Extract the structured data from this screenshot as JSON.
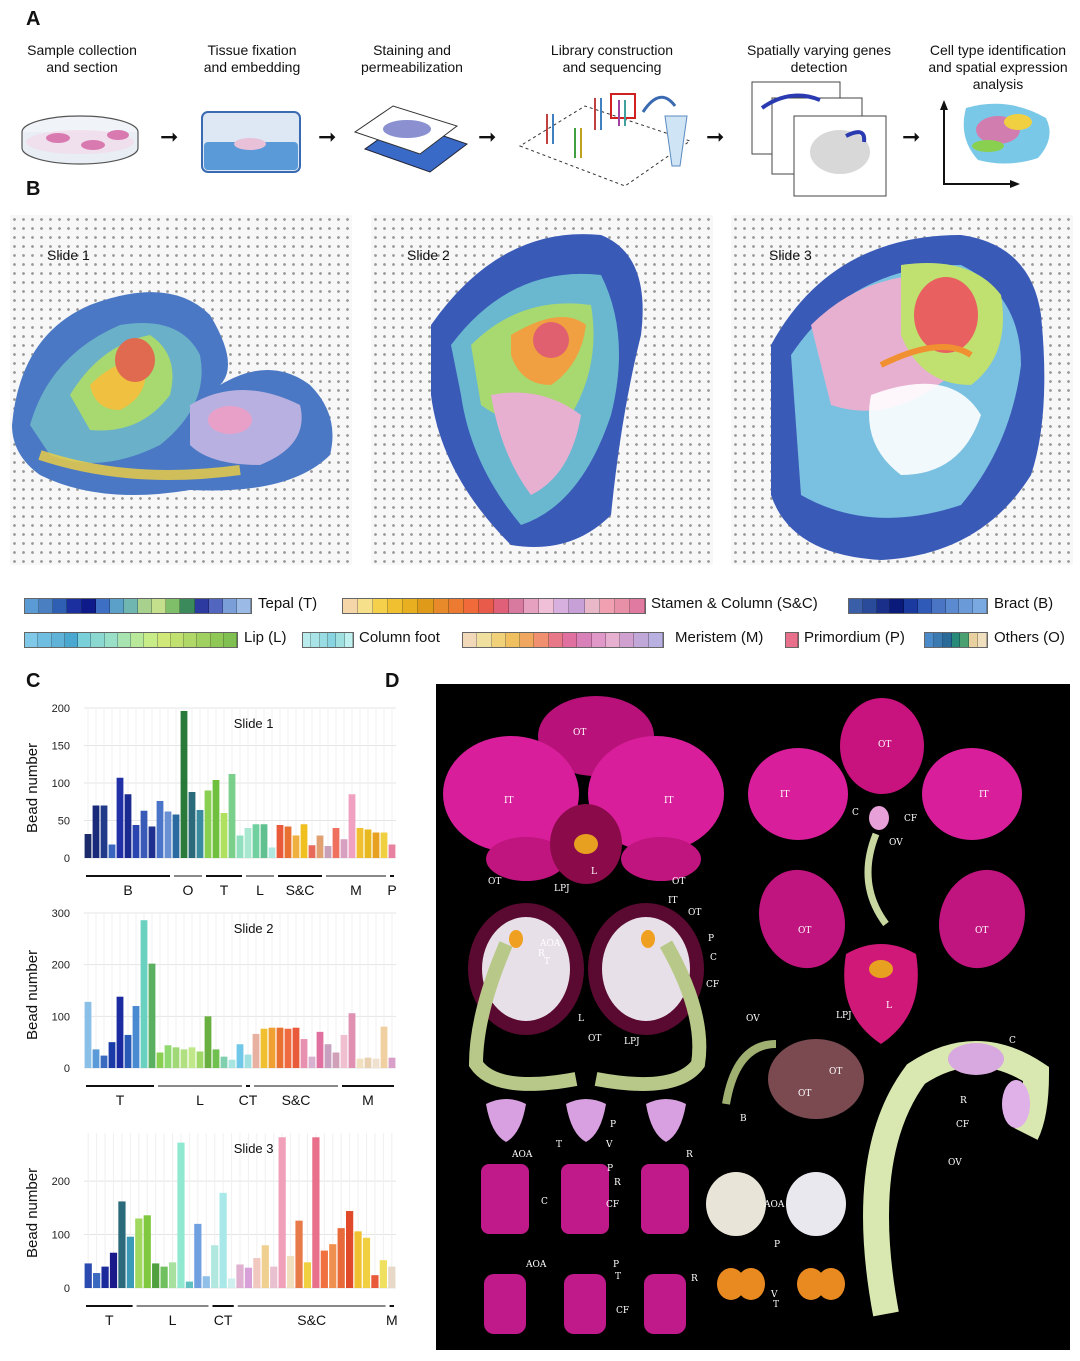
{
  "panels": {
    "a": "A",
    "b": "B",
    "c": "C",
    "d": "D"
  },
  "workflow": {
    "steps": [
      {
        "line1": "Sample collection",
        "line2": "and section",
        "line3": ""
      },
      {
        "line1": "Tissue fixation",
        "line2": "and embedding",
        "line3": ""
      },
      {
        "line1": "Staining and",
        "line2": "permeabilization",
        "line3": ""
      },
      {
        "line1": "Library construction",
        "line2": "and sequencing",
        "line3": ""
      },
      {
        "line1": "Spatially varying genes",
        "line2": "detection",
        "line3": ""
      },
      {
        "line1": "Cell type identification",
        "line2": "and spatial expression",
        "line3": "analysis"
      }
    ]
  },
  "slides": {
    "s1": "Slide 1",
    "s2": "Slide 2",
    "s3": "Slide 3"
  },
  "legend": {
    "tepal": "Tepal (T)",
    "stamen": "Stamen & Column (S&C)",
    "bract": "Bract (B)",
    "lip": "Lip (L)",
    "column_foot": "Column foot",
    "meristem": "Meristem (M)",
    "primordium": "Primordium (P)",
    "others": "Others (O)",
    "colors": {
      "tepal": [
        "#5b9bd5",
        "#4a7fc1",
        "#2f5fb3",
        "#1b2f9e",
        "#0f1a8a",
        "#3d6fc4",
        "#5aa0c8",
        "#6fb6b0",
        "#a9d18e",
        "#c5e08c",
        "#7fbf6a",
        "#3a8a5c",
        "#2d3aa0",
        "#5266c0",
        "#7a9fd8",
        "#9bbbe6"
      ],
      "stamen": [
        "#f4d6a8",
        "#f7e08a",
        "#f5d04a",
        "#f0c030",
        "#e8b020",
        "#e09a1a",
        "#e88a2a",
        "#ec7a30",
        "#f06a3a",
        "#e85a4a",
        "#e0607a",
        "#d87aa0",
        "#e6a0c0",
        "#f0c0d8",
        "#d8b0e0",
        "#c8a0d8",
        "#e8b8c8",
        "#f0a0b0",
        "#e890a8",
        "#e07aa0"
      ],
      "bract": [
        "#3a5fa8",
        "#2a4a9a",
        "#1a2f8a",
        "#0a1a7a",
        "#1a3aa0",
        "#2f5ab8",
        "#4a74c4",
        "#5b8ad0",
        "#6a9ad8",
        "#7aa8e0"
      ],
      "lip": [
        "#7fc8e8",
        "#6fbde0",
        "#5fb2d8",
        "#4aa8d0",
        "#7ad0d8",
        "#8ad8d0",
        "#9ae0c8",
        "#a8e4b0",
        "#b8e89a",
        "#c8ec88",
        "#d0e878",
        "#c0e070",
        "#b0d868",
        "#a0d060",
        "#90c858",
        "#80c050"
      ],
      "column_foot": [
        "#b8ecec",
        "#a8e4e8",
        "#98dce4",
        "#88d4e0",
        "#a0e0e0",
        "#c0f0f0"
      ],
      "meristem": [
        "#f0d8b8",
        "#f0e0a0",
        "#f0d078",
        "#f0c060",
        "#f0a860",
        "#f09070",
        "#e87888",
        "#e070a0",
        "#d880b8",
        "#e098c8",
        "#e8b0d0",
        "#d0a0d0",
        "#c0a8d8",
        "#b8b0e0"
      ],
      "primordium": [
        "#e8708a"
      ],
      "others": [
        "#4a8ac8",
        "#3a7ab0",
        "#2a6a98",
        "#2a8a7a",
        "#4aa070",
        "#e8d0a0",
        "#f0e0c0"
      ]
    }
  },
  "chart_data": [
    {
      "type": "bar",
      "title": "Slide 1",
      "ylabel": "Bead number",
      "ylim": [
        0,
        200
      ],
      "yticks": [
        0,
        50,
        100,
        150,
        200
      ],
      "values": [
        32,
        70,
        70,
        18,
        107,
        85,
        44,
        63,
        42,
        76,
        62,
        58,
        196,
        88,
        64,
        90,
        104,
        60,
        112,
        30,
        40,
        45,
        45,
        14,
        44,
        42,
        30,
        45,
        17,
        30,
        16,
        40,
        25,
        85,
        40,
        38,
        34,
        34,
        18
      ],
      "colors": [
        "#1a2a6a",
        "#1a2a7a",
        "#223a8a",
        "#3a66c0",
        "#2230a8",
        "#1a2a90",
        "#2a44b0",
        "#3a5ab8",
        "#203090",
        "#4a74c8",
        "#6a90d4",
        "#2a6aa0",
        "#2a7a3a",
        "#2a6a7a",
        "#3a8aa0",
        "#8ad050",
        "#70c040",
        "#b0e060",
        "#7ad08a",
        "#90e0c0",
        "#a8e8d0",
        "#70d0a0",
        "#60c090",
        "#b0e8e0",
        "#e85a3a",
        "#e87030",
        "#f0b040",
        "#f0c020",
        "#e86a5a",
        "#e0a070",
        "#c8a0b8",
        "#f07060",
        "#d8a0c0",
        "#f0a0c0",
        "#f0c030",
        "#e8b820",
        "#e8a020",
        "#f0d040",
        "#e880a0"
      ],
      "groups": [
        {
          "label": "B",
          "start": 0,
          "end": 10
        },
        {
          "label": "O",
          "start": 11,
          "end": 14
        },
        {
          "label": "T",
          "start": 15,
          "end": 19
        },
        {
          "label": "L",
          "start": 20,
          "end": 23
        },
        {
          "label": "S&C",
          "start": 24,
          "end": 29
        },
        {
          "label": "M",
          "start": 30,
          "end": 37
        },
        {
          "label": "P",
          "start": 38,
          "end": 38
        }
      ]
    },
    {
      "type": "bar",
      "title": "Slide 2",
      "ylabel": "Bead number",
      "ylim": [
        0,
        300
      ],
      "yticks": [
        0,
        100,
        200,
        300
      ],
      "values": [
        128,
        36,
        24,
        50,
        138,
        64,
        120,
        286,
        202,
        30,
        44,
        40,
        36,
        40,
        32,
        100,
        36,
        22,
        16,
        46,
        26,
        66,
        76,
        78,
        78,
        76,
        78,
        56,
        22,
        70,
        46,
        30,
        64,
        106,
        18,
        20,
        18,
        80,
        20
      ],
      "colors": [
        "#8ac0e8",
        "#5a9ad8",
        "#3a6ac0",
        "#1a3aa8",
        "#1a2aa0",
        "#2a5ab8",
        "#4a8ad0",
        "#6ad0c0",
        "#5ab060",
        "#8ad050",
        "#90d870",
        "#a0d878",
        "#b0e080",
        "#c0e888",
        "#a0d868",
        "#6ab040",
        "#70c050",
        "#80d0b0",
        "#a8e4e0",
        "#70c8e8",
        "#a0e0e0",
        "#e8b0a0",
        "#f0c030",
        "#f0a030",
        "#e87030",
        "#f06a40",
        "#e85a3a",
        "#e890b0",
        "#d8b0d0",
        "#e070a0",
        "#c8a0c0",
        "#d0a0b8",
        "#f0c0d0",
        "#e090b0",
        "#f0e0c0",
        "#e8d0b0",
        "#f0e0d0",
        "#f0d0a0",
        "#d8a0c8"
      ],
      "groups": [
        {
          "label": "T",
          "start": 0,
          "end": 8
        },
        {
          "label": "L",
          "start": 9,
          "end": 19
        },
        {
          "label": "CT",
          "start": 20,
          "end": 20
        },
        {
          "label": "S&C",
          "start": 21,
          "end": 31
        },
        {
          "label": "M",
          "start": 32,
          "end": 38
        }
      ]
    },
    {
      "type": "bar",
      "title": "Slide 3",
      "ylabel": "Bead number",
      "ylim": [
        0,
        290
      ],
      "yticks": [
        0,
        100,
        200
      ],
      "values": [
        46,
        28,
        40,
        66,
        162,
        96,
        130,
        136,
        46,
        40,
        48,
        272,
        12,
        120,
        22,
        80,
        178,
        18,
        44,
        38,
        56,
        80,
        40,
        282,
        60,
        126,
        48,
        282,
        70,
        82,
        112,
        144,
        106,
        94,
        24,
        52,
        40
      ],
      "colors": [
        "#2a4ab0",
        "#3a6ac0",
        "#1a2a9a",
        "#1a1a8a",
        "#2a6a7a",
        "#3a9ab8",
        "#a0d860",
        "#80c840",
        "#50a040",
        "#70c060",
        "#a8e0a0",
        "#90e8d0",
        "#60c0c0",
        "#70a0e0",
        "#90c0e8",
        "#b0e8e0",
        "#a8e8e8",
        "#d0f0f0",
        "#e0b0d0",
        "#d8a0d8",
        "#f0c8c0",
        "#f0d090",
        "#e8c0d0",
        "#f0a0b8",
        "#f0e0c0",
        "#e87a4a",
        "#f0d040",
        "#e8708a",
        "#f07040",
        "#f09050",
        "#e86a3a",
        "#e04a2a",
        "#f0c030",
        "#f0d040",
        "#e85a3a",
        "#f0e060",
        "#e8d8c8"
      ],
      "groups": [
        {
          "label": "T",
          "start": 0,
          "end": 5
        },
        {
          "label": "L",
          "start": 6,
          "end": 14
        },
        {
          "label": "CT",
          "start": 15,
          "end": 17
        },
        {
          "label": "S&C",
          "start": 18,
          "end": 35
        },
        {
          "label": "M",
          "start": 36,
          "end": 36
        }
      ]
    }
  ],
  "photo_labels": {
    "ot": "OT",
    "it": "IT",
    "l": "L",
    "lpj": "LPJ",
    "c": "C",
    "cf": "CF",
    "ov": "OV",
    "aoa": "AOA",
    "r": "R",
    "t": "T",
    "p": "P",
    "b": "B",
    "v": "V"
  }
}
